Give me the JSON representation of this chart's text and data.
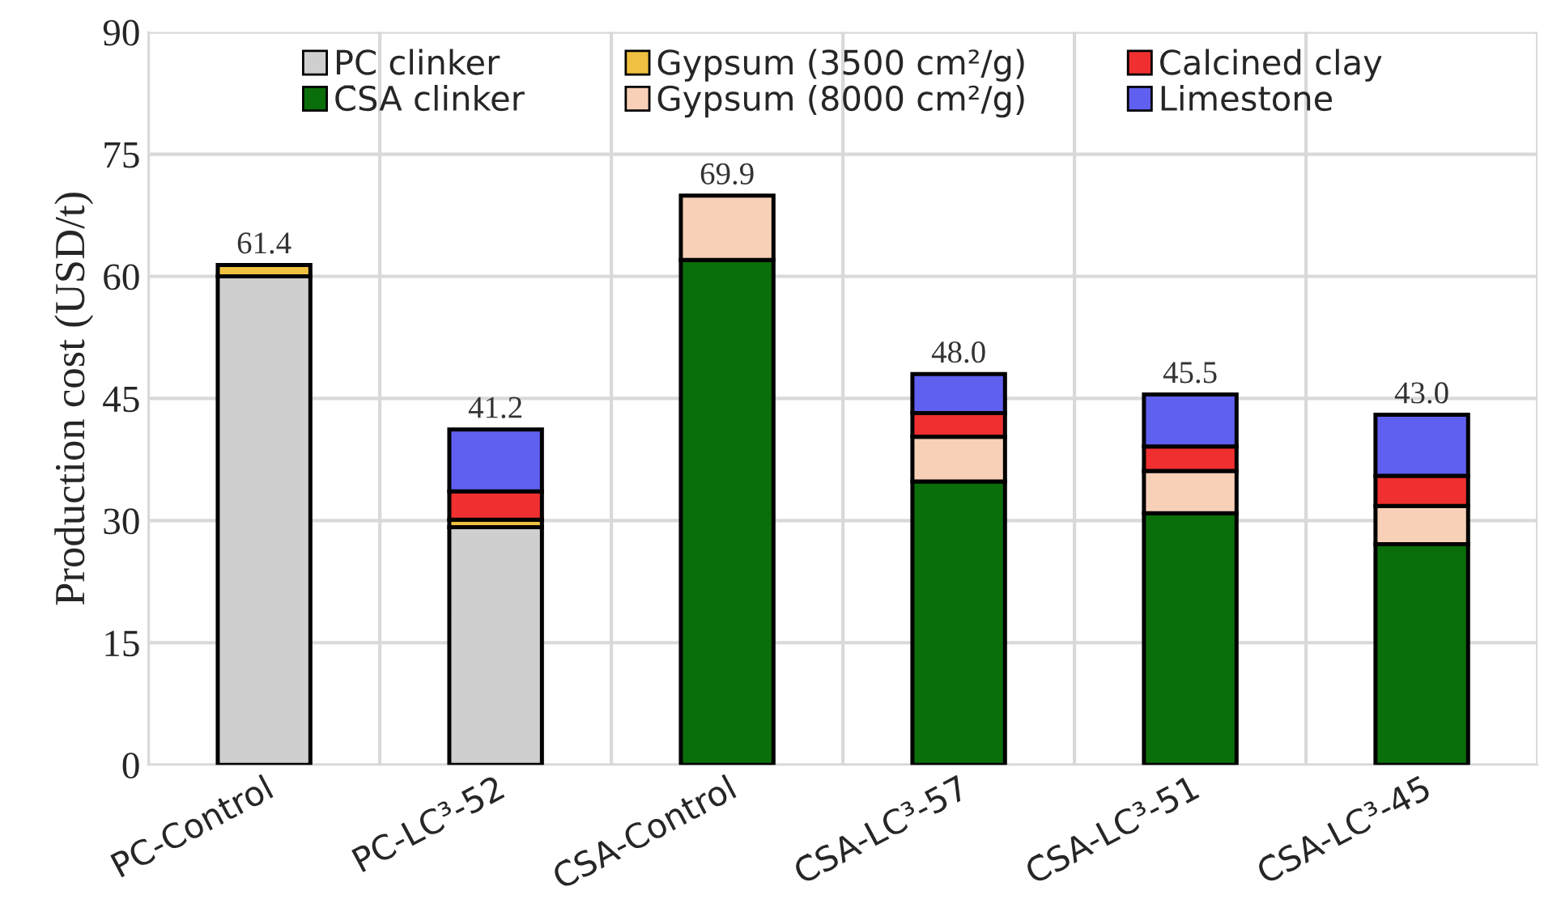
{
  "chart_data": {
    "type": "bar",
    "stacked": true,
    "ylabel": "Production cost (USD/t)",
    "categories": [
      "PC-Control",
      "PC-LC³-52",
      "C̄SA-Control",
      "C̄SA-LC³-57",
      "C̄SA-LC³-51",
      "C̄SA-LC³-45"
    ],
    "series": [
      {
        "name": "PC clinker",
        "color": "#cfcfcf",
        "values": [
          60.0,
          29.2,
          null,
          null,
          null,
          null
        ]
      },
      {
        "name": "C̄SA clinker",
        "color": "#0a6e0a",
        "values": [
          null,
          null,
          62.0,
          34.8,
          30.9,
          27.1
        ]
      },
      {
        "name": "Gypsum (3500 cm²/g)",
        "color": "#f0c040",
        "values": [
          1.4,
          0.9,
          null,
          null,
          null,
          null
        ]
      },
      {
        "name": "Gypsum (8000 cm²/g)",
        "color": "#f8d0b8",
        "values": [
          null,
          null,
          7.9,
          5.5,
          5.2,
          4.7
        ]
      },
      {
        "name": "Calcined clay",
        "color": "#f03030",
        "values": [
          null,
          3.5,
          null,
          2.9,
          3.0,
          3.7
        ]
      },
      {
        "name": "Limestone",
        "color": "#6060f0",
        "values": [
          null,
          7.6,
          null,
          4.8,
          6.4,
          7.5
        ]
      }
    ],
    "totals": [
      "61.4",
      "41.2",
      "69.9",
      "48.0",
      "45.5",
      "43.0"
    ],
    "ylim": [
      0,
      90
    ],
    "yticks": [
      0,
      15,
      30,
      45,
      60,
      75,
      90
    ],
    "grid": true,
    "legend": "top"
  }
}
